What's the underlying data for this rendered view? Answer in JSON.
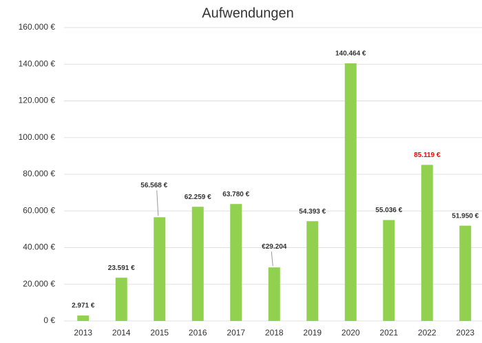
{
  "chart_data": {
    "type": "bar",
    "title": "Aufwendungen",
    "categories": [
      "2013",
      "2014",
      "2015",
      "2016",
      "2017",
      "2018",
      "2019",
      "2020",
      "2021",
      "2022",
      "2023"
    ],
    "values": [
      2971,
      23591,
      56568,
      62259,
      63780,
      29204,
      54393,
      140464,
      55036,
      85119,
      51950
    ],
    "value_labels": [
      "2.971 €",
      "23.591 €",
      "56.568 €",
      "62.259 €",
      "63.780 €",
      "€29.204",
      "54.393 €",
      "140.464 €",
      "55.036 €",
      "85.119 €",
      "51.950 €"
    ],
    "value_label_colors": [
      "#333333",
      "#333333",
      "#333333",
      "#333333",
      "#333333",
      "#333333",
      "#333333",
      "#333333",
      "#333333",
      "#ff0000",
      "#333333"
    ],
    "color": "#92d050",
    "ylim": [
      0,
      160000
    ],
    "yticks": [
      {
        "value": 0,
        "label": "0 €"
      },
      {
        "value": 20000,
        "label": "20.000 €"
      },
      {
        "value": 40000,
        "label": "40.000 €"
      },
      {
        "value": 60000,
        "label": "60.000 €"
      },
      {
        "value": 80000,
        "label": "80.000 €"
      },
      {
        "value": 100000,
        "label": "100.000 €"
      },
      {
        "value": 120000,
        "label": "120.000 €"
      },
      {
        "value": 140000,
        "label": "140.000 €"
      },
      {
        "value": 160000,
        "label": "160.000 €"
      }
    ],
    "grid": true
  }
}
